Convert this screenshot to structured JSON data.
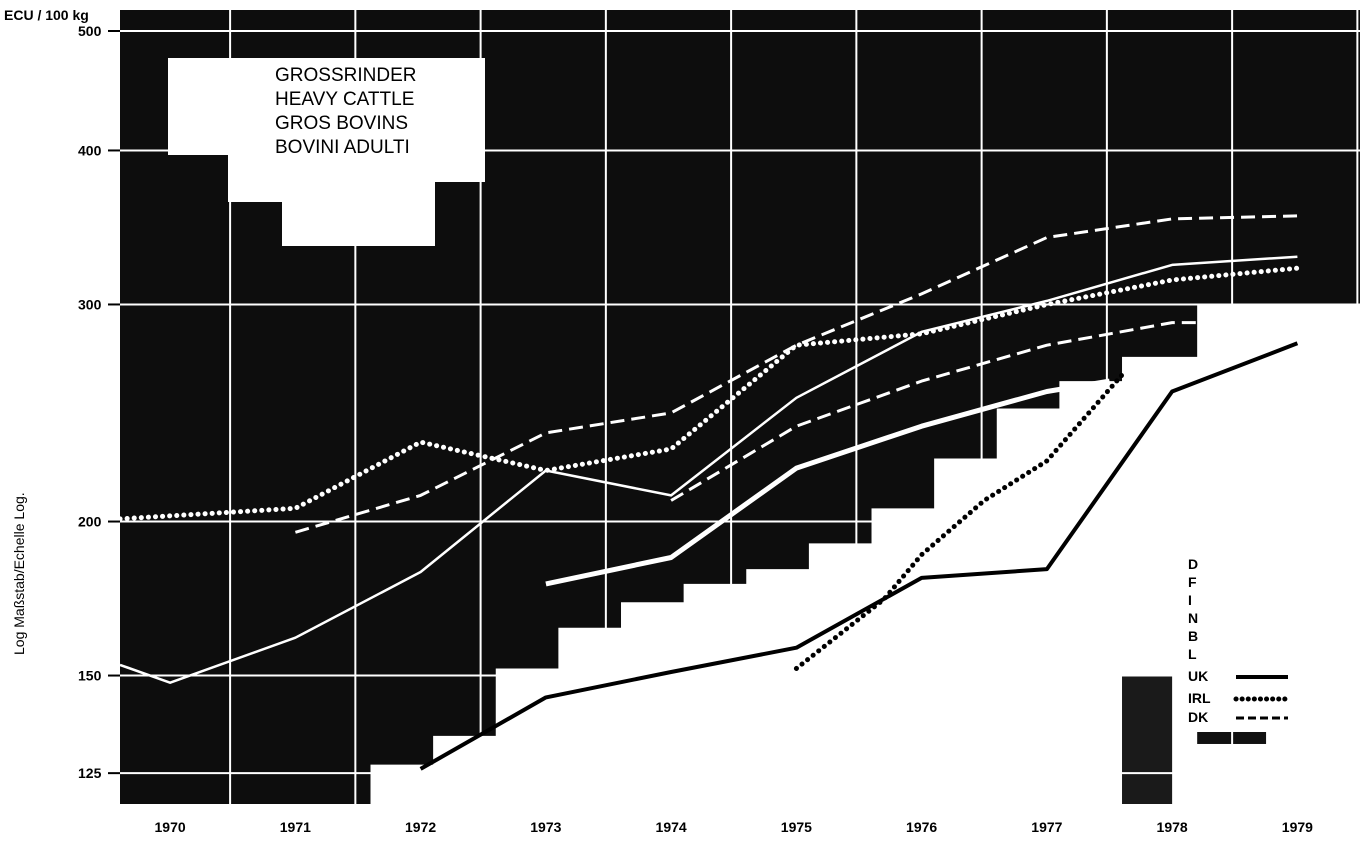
{
  "chart_data": {
    "type": "line",
    "title": "",
    "title_lines": [
      "GROSSRINDER",
      "HEAVY CATTLE",
      "GROS BOVINS",
      "BOVINI ADULTI"
    ],
    "unit_label": "ECU / 100 kg",
    "ylabel": "Log Maßstab/Echelle Log.",
    "xlabel": "",
    "y_scale": "log",
    "ylim": [
      118,
      520
    ],
    "xlim": [
      1969.6,
      1979.5
    ],
    "y_ticks": [
      125,
      150,
      200,
      300,
      400,
      500
    ],
    "x": [
      "1970",
      "1971",
      "1972",
      "1973",
      "1974",
      "1975",
      "1976",
      "1977",
      "1978",
      "1979"
    ],
    "grid": true,
    "legend_position": "bottom-right",
    "legend_labels": [
      "D",
      "F",
      "I",
      "N",
      "B",
      "L",
      "UK",
      "IRL",
      "DK"
    ],
    "series": [
      {
        "name": "UK",
        "style": "solid-black",
        "points": [
          [
            1972,
            126
          ],
          [
            1973,
            144
          ],
          [
            1974,
            151
          ],
          [
            1975,
            158
          ],
          [
            1976,
            180
          ],
          [
            1977,
            183
          ],
          [
            1978,
            255
          ],
          [
            1979,
            279
          ]
        ]
      },
      {
        "name": "IRL",
        "style": "dotted-black",
        "points": [
          [
            1975,
            152
          ],
          [
            1975.7,
            173
          ],
          [
            1976,
            188
          ],
          [
            1976.5,
            208
          ],
          [
            1977,
            224
          ],
          [
            1977.6,
            263
          ]
        ]
      },
      {
        "name": "DK",
        "style": "dashed-white",
        "points": [
          [
            1971,
            196
          ],
          [
            1972,
            210
          ],
          [
            1973,
            236
          ],
          [
            1974,
            245
          ],
          [
            1975,
            278
          ],
          [
            1976,
            306
          ],
          [
            1977,
            340
          ],
          [
            1978,
            352
          ],
          [
            1979,
            354
          ]
        ]
      },
      {
        "name": "",
        "style": "dotted-white",
        "points": [
          [
            1969.6,
            201
          ],
          [
            1971,
            205
          ],
          [
            1972,
            232
          ],
          [
            1973,
            220
          ],
          [
            1974,
            229
          ],
          [
            1975,
            278
          ],
          [
            1976,
            284
          ],
          [
            1977,
            300
          ],
          [
            1978,
            314
          ],
          [
            1979,
            321
          ]
        ]
      },
      {
        "name": "",
        "style": "solid-white-thin",
        "points": [
          [
            1969.6,
            153
          ],
          [
            1970,
            148
          ],
          [
            1971,
            161
          ],
          [
            1972,
            182
          ],
          [
            1973,
            220
          ],
          [
            1974,
            210
          ],
          [
            1975,
            252
          ],
          [
            1976,
            285
          ],
          [
            1977,
            302
          ],
          [
            1978,
            323
          ],
          [
            1979,
            328
          ]
        ]
      },
      {
        "name": "",
        "style": "dashed-white",
        "points": [
          [
            1974,
            208
          ],
          [
            1975,
            239
          ],
          [
            1976,
            260
          ],
          [
            1977,
            278
          ],
          [
            1978,
            290
          ],
          [
            1979,
            290
          ]
        ]
      },
      {
        "name": "",
        "style": "solid-white-thick",
        "points": [
          [
            1973,
            178
          ],
          [
            1974,
            187
          ],
          [
            1975,
            221
          ],
          [
            1976,
            239
          ],
          [
            1977,
            255
          ],
          [
            1977.5,
            260
          ]
        ]
      }
    ]
  }
}
